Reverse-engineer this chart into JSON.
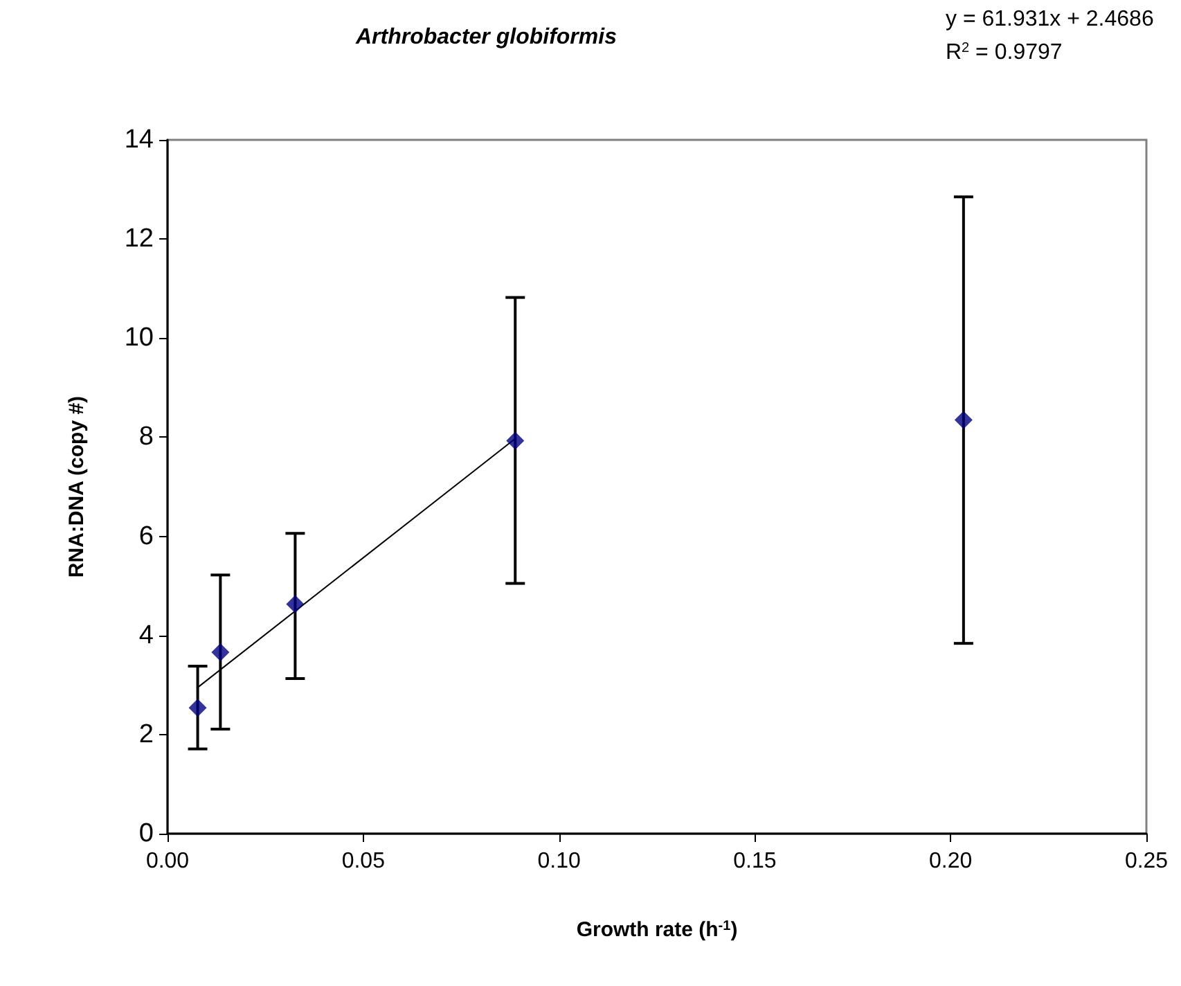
{
  "chart_data": {
    "type": "scatter",
    "title": "Arthrobacter globiformis",
    "xlabel": "Growth rate (h$^{-1}$)",
    "ylabel": "RNA:DNA (copy #)",
    "annotations": [
      "y = 61.931x + 2.4686",
      "R$^{2}$ = 0.9797"
    ],
    "series": [
      {
        "color": "#000080",
        "marker": "diamond",
        "x": [
          0.0077,
          0.0135,
          0.0326,
          0.0888,
          0.2033
        ],
        "values": [
          2.54,
          3.66,
          4.63,
          7.93,
          8.35
        ],
        "errors": [
          [
            1.71,
            3.38
          ],
          [
            2.11,
            5.22
          ],
          [
            3.13,
            6.06
          ],
          [
            5.05,
            10.82
          ],
          [
            3.84,
            12.85
          ]
        ]
      },
      {
        "type": "line",
        "color": "#000000",
        "marker": "none",
        "x": [
          0.0077,
          0.0888
        ],
        "values": [
          2.95,
          7.97
        ]
      }
    ],
    "xlim": [
      0,
      0.25
    ],
    "xticks": [
      {
        "value": 0,
        "label": "0.00"
      },
      {
        "value": 0.05,
        "label": "0.05"
      },
      {
        "value": 0.1,
        "label": "0.10"
      },
      {
        "value": 0.15,
        "label": "0.15"
      },
      {
        "value": 0.2,
        "label": "0.20"
      },
      {
        "value": 0.25,
        "label": "0.25"
      }
    ],
    "ylim": [
      0,
      14
    ],
    "yticks": [
      0,
      2,
      4,
      6,
      8,
      10,
      12,
      14
    ],
    "grid": false
  }
}
